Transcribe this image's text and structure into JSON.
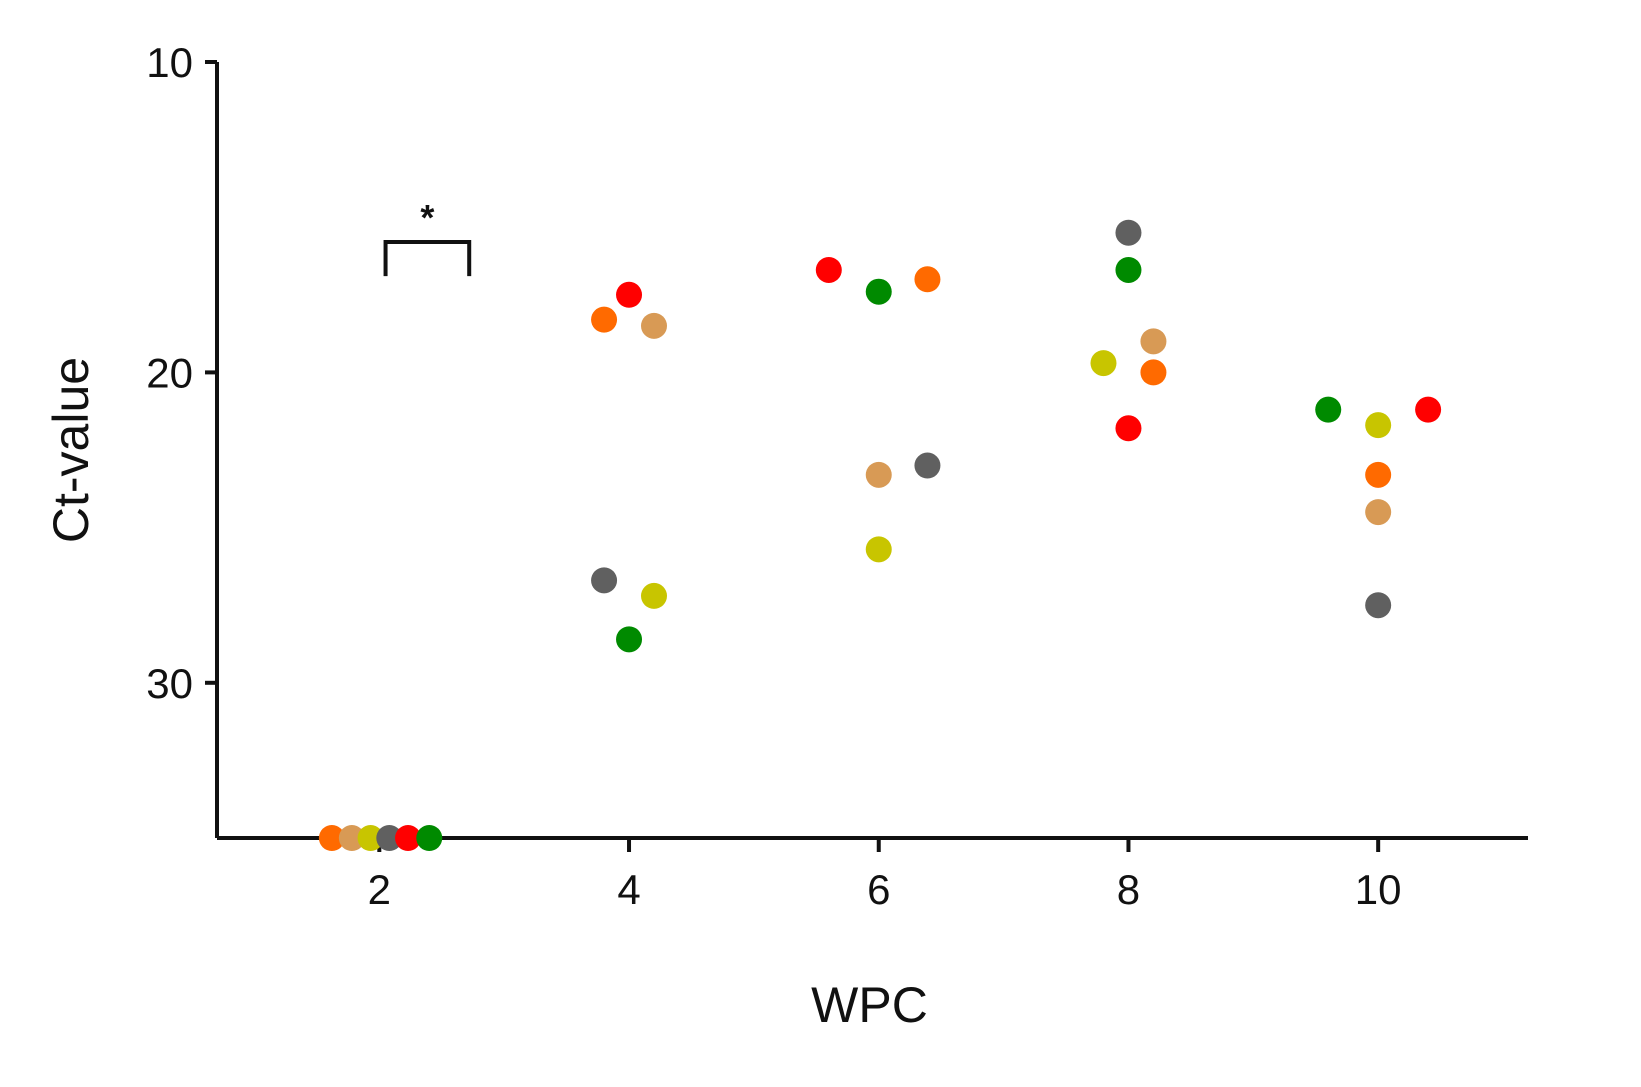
{
  "chart_data": {
    "type": "scatter",
    "title": "",
    "xlabel": "WPC",
    "ylabel": "Ct-value",
    "xlim": [
      0.7,
      11.2
    ],
    "ylim": [
      10,
      35
    ],
    "y_inverted": true,
    "x_ticks": [
      "2",
      "4",
      "6",
      "8",
      "10"
    ],
    "y_ticks": [
      "10",
      "20",
      "30"
    ],
    "grid": false,
    "legend": "none",
    "annotation": {
      "text": "*",
      "bracket_from": 2.05,
      "bracket_to": 2.72,
      "bracket_y": 15.8,
      "bracket_depth": 1.1
    },
    "colors": {
      "orange": "#ff6a00",
      "tan": "#d89a55",
      "olive": "#c8c500",
      "gray": "#606060",
      "red": "#ff0000",
      "green": "#008a00"
    },
    "series": [
      {
        "color": "orange",
        "points": [
          [
            1.62,
            35
          ],
          [
            3.8,
            18.3
          ],
          [
            6.39,
            17.0
          ],
          [
            8.2,
            20.0
          ],
          [
            10.0,
            23.3
          ]
        ]
      },
      {
        "color": "tan",
        "points": [
          [
            1.78,
            35
          ],
          [
            4.2,
            18.5
          ],
          [
            6.0,
            23.3
          ],
          [
            8.2,
            19.0
          ],
          [
            10.0,
            24.5
          ]
        ]
      },
      {
        "color": "olive",
        "points": [
          [
            1.93,
            35
          ],
          [
            4.2,
            27.2
          ],
          [
            6.0,
            25.7
          ],
          [
            7.8,
            19.7
          ],
          [
            10.0,
            21.7
          ]
        ]
      },
      {
        "color": "gray",
        "points": [
          [
            2.08,
            35
          ],
          [
            3.8,
            26.7
          ],
          [
            6.39,
            23.0
          ],
          [
            8.0,
            15.5
          ],
          [
            10.0,
            27.5
          ]
        ]
      },
      {
        "color": "red",
        "points": [
          [
            2.23,
            35
          ],
          [
            4.0,
            17.5
          ],
          [
            5.6,
            16.7
          ],
          [
            8.0,
            21.8
          ],
          [
            10.4,
            21.2
          ]
        ]
      },
      {
        "color": "green",
        "points": [
          [
            2.4,
            35
          ],
          [
            4.0,
            28.6
          ],
          [
            6.0,
            17.4
          ],
          [
            8.0,
            16.7
          ],
          [
            9.6,
            21.2
          ]
        ]
      }
    ]
  }
}
